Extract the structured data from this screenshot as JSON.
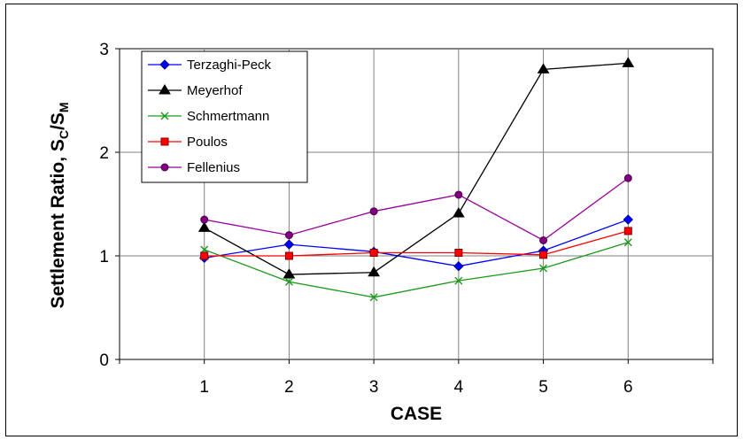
{
  "chart_data": {
    "type": "line",
    "xlabel": "CASE",
    "ylabel_main": "Settlement Ratio, S",
    "ylabel_sub_c": "C",
    "ylabel_slash": "/S",
    "ylabel_sub_m": "M",
    "categories": [
      "1",
      "2",
      "3",
      "4",
      "5",
      "6"
    ],
    "x": [
      1,
      2,
      3,
      4,
      5,
      6
    ],
    "xlim": [
      0,
      7
    ],
    "ylim": [
      0,
      3
    ],
    "yticks": [
      0,
      1,
      2,
      3
    ],
    "grid": true,
    "legend_position": "top-left",
    "series": [
      {
        "name": "Terzaghi-Peck",
        "color": "#0000ff",
        "marker": "diamond",
        "marker_fill": "#0000ff",
        "values": [
          0.98,
          1.11,
          1.04,
          0.9,
          1.05,
          1.35
        ]
      },
      {
        "name": "Meyerhof",
        "color": "#000000",
        "marker": "triangle",
        "marker_fill": "#000000",
        "values": [
          1.27,
          0.82,
          0.84,
          1.41,
          2.8,
          2.86
        ]
      },
      {
        "name": "Schmertmann",
        "color": "#1a9a1a",
        "marker": "x",
        "marker_fill": "#1a9a1a",
        "values": [
          1.06,
          0.75,
          0.6,
          0.76,
          0.88,
          1.13
        ]
      },
      {
        "name": "Poulos",
        "color": "#ff0000",
        "marker": "square",
        "marker_fill": "#ff0000",
        "values": [
          1.0,
          1.0,
          1.03,
          1.03,
          1.01,
          1.24
        ]
      },
      {
        "name": "Fellenius",
        "color": "#990099",
        "marker": "circle",
        "marker_fill": "#800080",
        "values": [
          1.35,
          1.2,
          1.43,
          1.59,
          1.15,
          1.75
        ]
      }
    ]
  }
}
